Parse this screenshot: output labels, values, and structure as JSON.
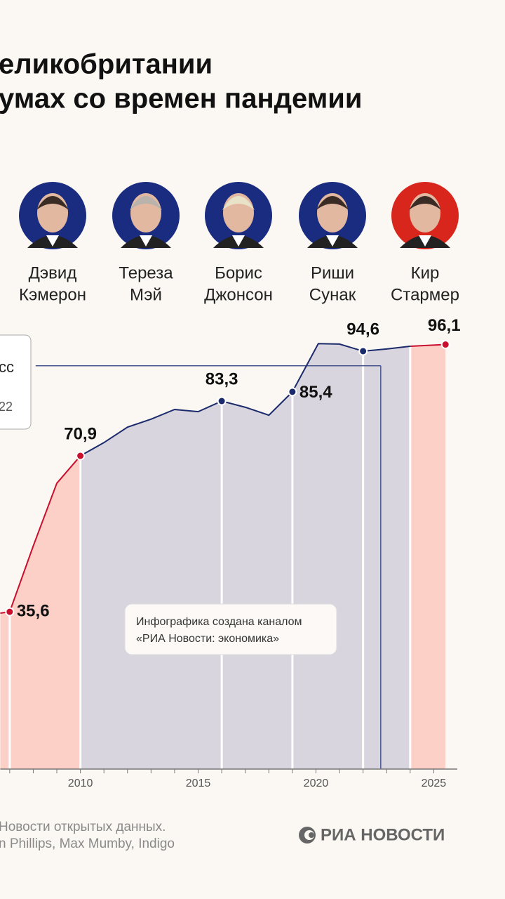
{
  "title_lines": [
    "еликобритании",
    "умах со времен пандемии"
  ],
  "leaders": [
    {
      "name_lines": [
        "Дэвид",
        "Кэмерон"
      ],
      "color": "#1a2c80"
    },
    {
      "name_lines": [
        "Тереза",
        "Мэй"
      ],
      "color": "#1a2c80"
    },
    {
      "name_lines": [
        "Борис",
        "Джонсон"
      ],
      "color": "#1a2c80"
    },
    {
      "name_lines": [
        "Риши",
        "Сунак"
      ],
      "color": "#1a2c80"
    },
    {
      "name_lines": [
        "Кир",
        "Стармер"
      ],
      "color": "#d9261c"
    }
  ],
  "chart_data": {
    "type": "line",
    "x": [
      2006.6,
      2007,
      2008,
      2009,
      2010,
      2011,
      2012,
      2013,
      2014,
      2015,
      2016,
      2017,
      2018,
      2019,
      2020.1,
      2021,
      2022,
      2023,
      2024,
      2025.5
    ],
    "values": [
      35.3,
      35.6,
      50.5,
      64.7,
      70.9,
      73.9,
      77.4,
      79.2,
      81.4,
      80.9,
      83.3,
      81.9,
      80.1,
      85.4,
      96.3,
      96.2,
      94.6,
      95.1,
      95.7,
      96.1
    ],
    "value_labels": [
      null,
      "35,6",
      null,
      null,
      "70,9",
      null,
      null,
      null,
      null,
      null,
      "83,3",
      null,
      null,
      "85,4",
      null,
      null,
      "94,6",
      null,
      null,
      "96,1"
    ],
    "xlim": [
      2006.6,
      2026
    ],
    "ylim": [
      0,
      100
    ],
    "xticks": [
      2010,
      2015,
      2020,
      2025
    ],
    "xminorticks": [
      2007,
      2008,
      2009,
      2010,
      2011,
      2012,
      2013,
      2014,
      2015,
      2016,
      2017,
      2018,
      2019,
      2020,
      2021,
      2022,
      2023,
      2024,
      2025
    ],
    "periods": [
      {
        "start": 2006.6,
        "end": 2010,
        "fill": "#fcd0c6",
        "line": "#c8102e"
      },
      {
        "start": 2010,
        "end": 2024,
        "fill": "#d8d5de",
        "line": "#1b2a6b"
      },
      {
        "start": 2024,
        "end": 2025.5,
        "fill": "#fcd0c6",
        "line": "#c8102e"
      }
    ],
    "dividers": [
      2007,
      2010,
      2016,
      2019,
      2022,
      2024
    ],
    "reference": {
      "value": 91.3,
      "start": 2008.1,
      "end": 2022.75,
      "color": "#4a5690"
    },
    "legend_texts": [
      "сс",
      "22"
    ]
  },
  "annotation": [
    "Инфографика создана каналом",
    "«РИА Новости: экономика»"
  ],
  "footer": {
    "source_lines": [
      "Новости открытых данных.",
      "n Phillips, Max Mumby, Indigo"
    ],
    "logo": "РИА НОВОСТИ"
  }
}
